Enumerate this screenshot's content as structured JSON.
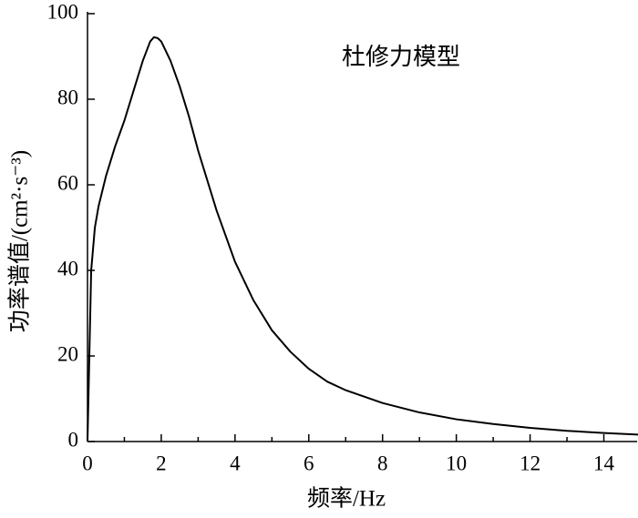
{
  "chart_data": {
    "type": "line",
    "annotation": "杜修力模型",
    "xlabel": "频率/Hz",
    "ylabel": "功率谱值/(cm²·s⁻³)",
    "x": [
      0,
      0.05,
      0.1,
      0.2,
      0.3,
      0.5,
      0.75,
      1.0,
      1.25,
      1.5,
      1.7,
      1.8,
      1.9,
      2.0,
      2.25,
      2.5,
      2.75,
      3.0,
      3.5,
      4.0,
      4.5,
      5.0,
      5.5,
      6.0,
      6.5,
      7.0,
      8.0,
      9.0,
      10.0,
      11.0,
      12.0,
      13.0,
      14.0,
      15.0
    ],
    "series": [
      {
        "color": "#000000",
        "values": [
          0,
          20,
          40,
          50,
          55,
          62,
          69,
          75,
          82,
          89,
          93.5,
          94.5,
          94.3,
          93.5,
          89,
          83,
          76,
          68,
          54,
          42,
          33,
          26,
          21,
          17,
          14,
          12,
          9,
          6.8,
          5.2,
          4.1,
          3.2,
          2.5,
          2.0,
          1.6
        ]
      }
    ],
    "xlim": [
      0,
      15
    ],
    "xticks": [
      0,
      2,
      4,
      6,
      8,
      10,
      12,
      14
    ],
    "xminor_ticks": [
      1,
      3,
      5,
      7,
      9,
      11,
      13,
      15
    ],
    "ylim": [
      0,
      100
    ],
    "yticks": [
      0,
      20,
      40,
      60,
      80,
      100
    ]
  }
}
